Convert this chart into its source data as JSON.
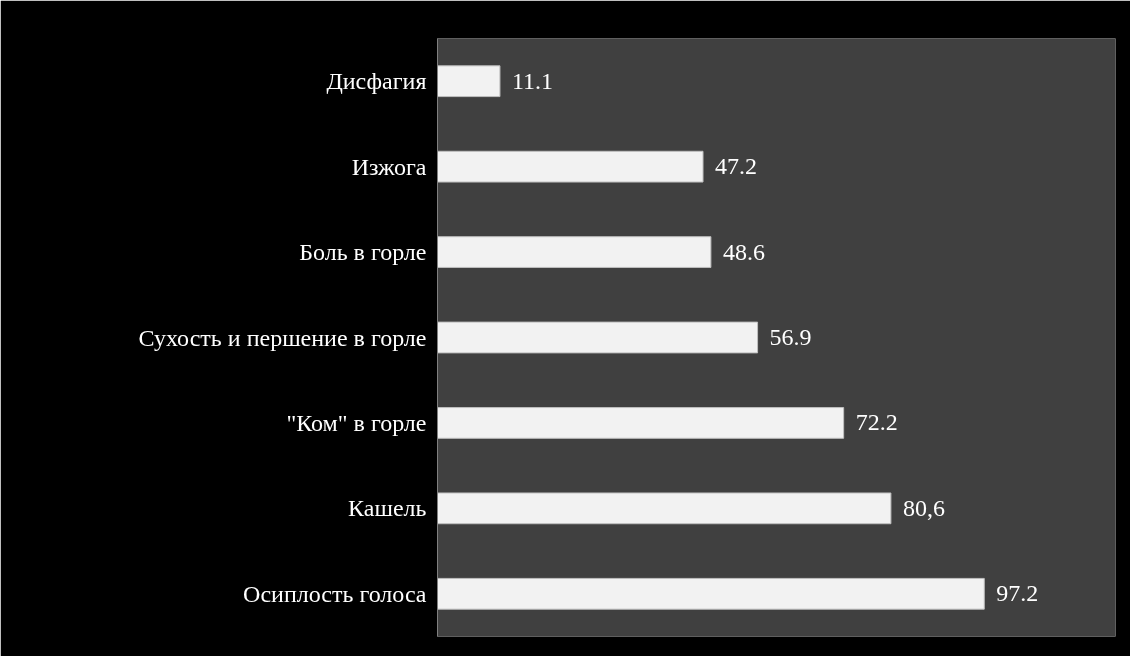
{
  "chart_data": {
    "type": "bar",
    "orientation": "horizontal",
    "categories": [
      "Дисфагия",
      "Изжога",
      "Боль в горле",
      "Сухость и першение в горле",
      "\"Ком\" в горле",
      "Кашель",
      "Осиплость голоса"
    ],
    "values": [
      11.1,
      47.2,
      48.6,
      56.9,
      72.2,
      80.6,
      97.2
    ],
    "value_labels": [
      "11.1",
      "47.2",
      "48.6",
      "56.9",
      "72.2",
      "80,6",
      "97.2"
    ],
    "color": "#f2f2f2",
    "grid": false,
    "tick_labels": "y"
  }
}
